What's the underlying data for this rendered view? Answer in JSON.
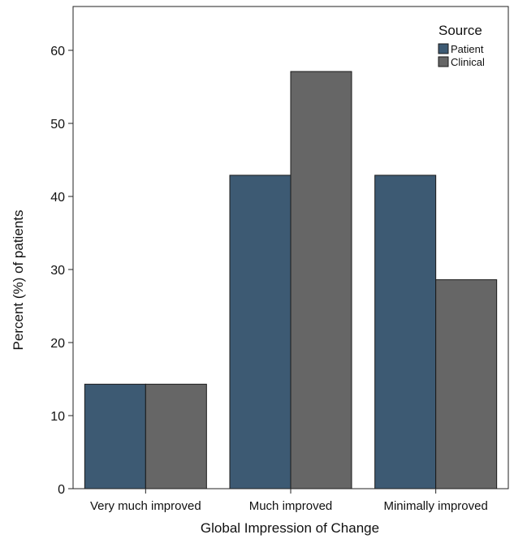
{
  "chart_data": {
    "type": "bar",
    "categories": [
      "Very much improved",
      "Much improved",
      "Minimally improved"
    ],
    "series": [
      {
        "name": "Patient",
        "values": [
          14.3,
          42.9,
          42.9
        ],
        "color": "#3d5a73"
      },
      {
        "name": "Clinical",
        "values": [
          14.3,
          57.1,
          28.6
        ],
        "color": "#666666"
      }
    ],
    "xlabel": "Global Impression of Change",
    "ylabel": "Percent (%) of patients",
    "ylim": [
      0,
      66
    ],
    "yticks": [
      0,
      10,
      20,
      30,
      40,
      50,
      60
    ],
    "legend_title": "Source",
    "legend_position": "top-right",
    "grid": false
  }
}
